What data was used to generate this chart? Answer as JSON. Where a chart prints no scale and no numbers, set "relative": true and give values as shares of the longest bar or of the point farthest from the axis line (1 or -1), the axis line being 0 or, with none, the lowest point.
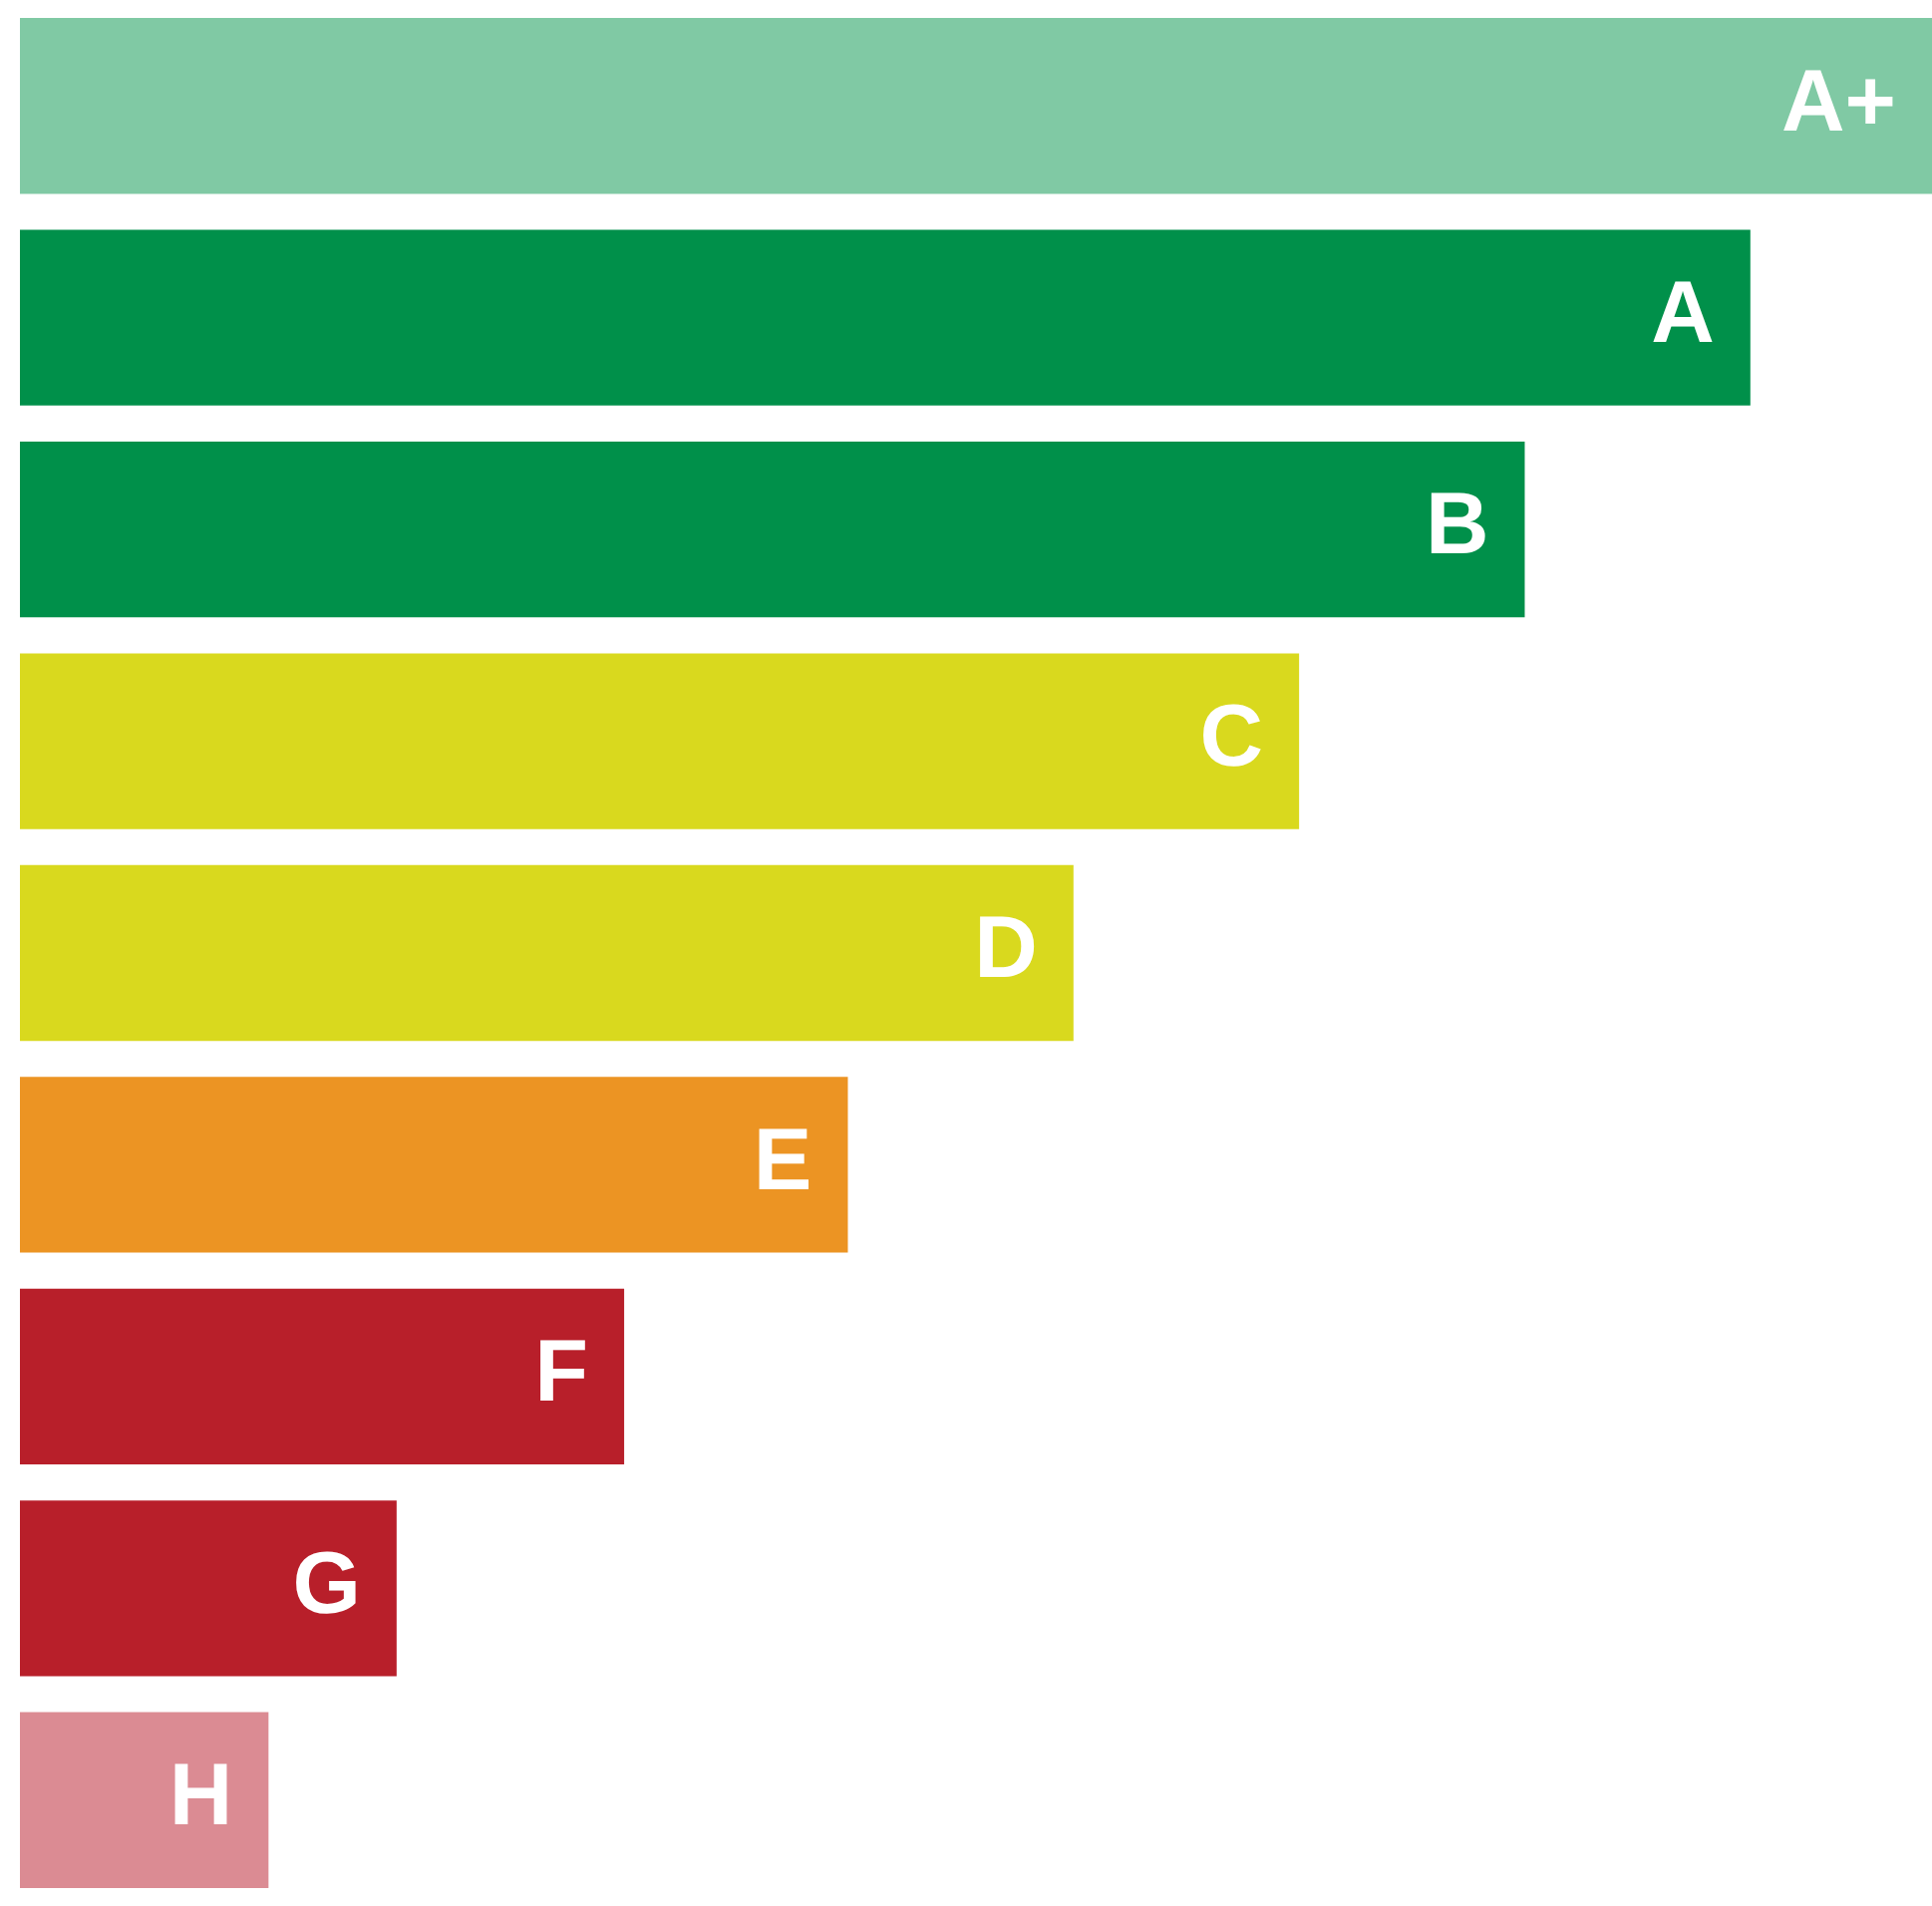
{
  "chart_data": {
    "type": "bar",
    "orientation": "horizontal",
    "relative": true,
    "categories": [
      "A+",
      "A",
      "B",
      "C",
      "D",
      "E",
      "F",
      "G",
      "H"
    ],
    "values": [
      1,
      0.905,
      0.787,
      0.669,
      0.551,
      0.433,
      0.316,
      0.197,
      0.13
    ],
    "colors": [
      "#80c9a4",
      "#00904a",
      "#00904a",
      "#d9d91e",
      "#d9d91e",
      "#ec9423",
      "#b81f2a",
      "#b81f2a",
      "#db8b93"
    ]
  }
}
